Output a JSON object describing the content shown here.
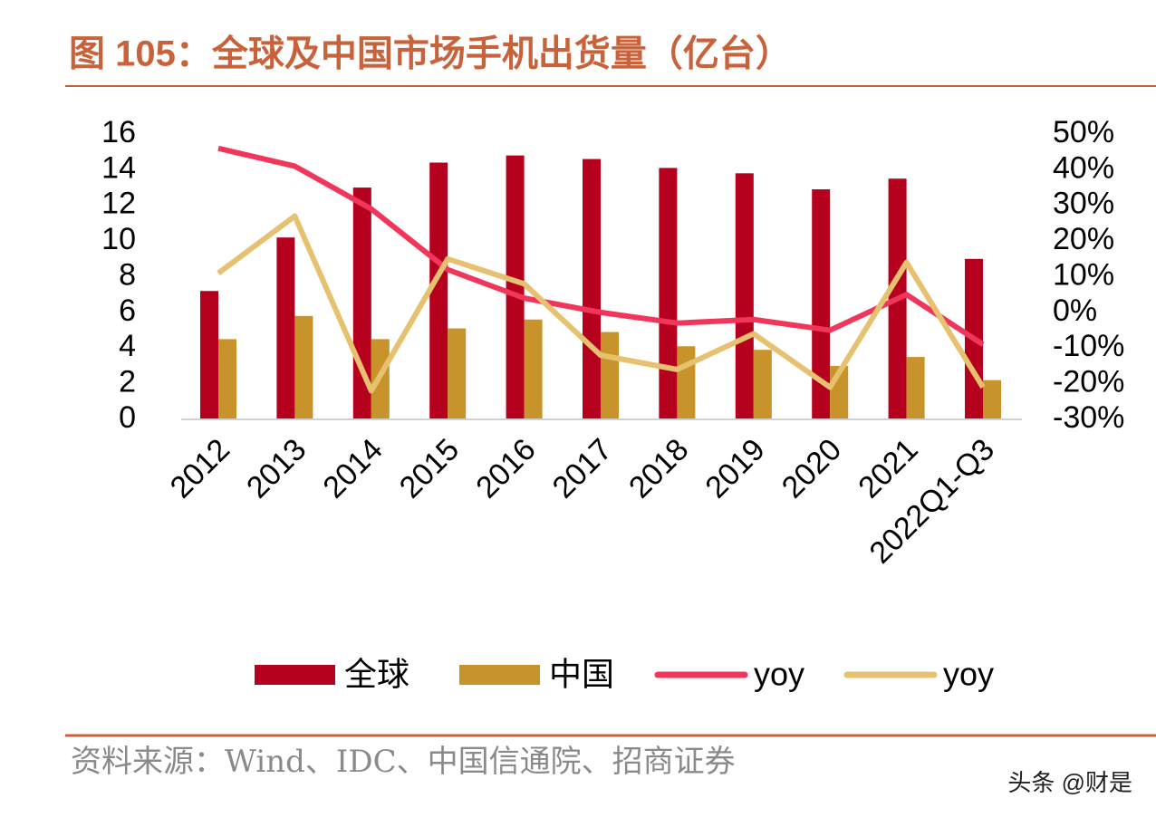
{
  "chart_data": {
    "type": "bar",
    "title": "图 105：全球及中国市场手机出货量（亿台）",
    "source": "资料来源：Wind、IDC、中国信通院、招商证券",
    "watermark": "头条 @财是",
    "categories": [
      "2012",
      "2013",
      "2014",
      "2015",
      "2016",
      "2017",
      "2018",
      "2019",
      "2020",
      "2021",
      "2022Q1-Q3"
    ],
    "series": [
      {
        "name": "全球",
        "type": "bar",
        "color": "#b5001e",
        "values": [
          7.2,
          10.2,
          13.0,
          14.4,
          14.8,
          14.6,
          14.1,
          13.8,
          12.9,
          13.5,
          9.0
        ]
      },
      {
        "name": "中国",
        "type": "bar",
        "color": "#c8932a",
        "values": [
          4.5,
          5.8,
          4.5,
          5.1,
          5.6,
          4.9,
          4.1,
          3.9,
          3.0,
          3.5,
          2.2
        ]
      },
      {
        "name": "yoy",
        "type": "line",
        "axis": "y2",
        "color": "#f0365a",
        "values": [
          46,
          41,
          29,
          12,
          4,
          0,
          -3,
          -2,
          -5,
          5,
          -9
        ]
      },
      {
        "name": "yoy",
        "type": "line",
        "axis": "y2",
        "color": "#e6c170",
        "values": [
          11,
          27,
          -22,
          15,
          8,
          -12,
          -16,
          -6,
          -21,
          14,
          -21
        ]
      }
    ],
    "ylim": [
      0,
      16
    ],
    "yticks": [
      0,
      2,
      4,
      6,
      8,
      10,
      12,
      14,
      16
    ],
    "y2lim": [
      -30,
      50
    ],
    "y2ticks": [
      {
        "value": -30,
        "label": "-30%"
      },
      {
        "value": -20,
        "label": "-20%"
      },
      {
        "value": -10,
        "label": "-10%"
      },
      {
        "value": 0,
        "label": "0%"
      },
      {
        "value": 10,
        "label": "10%"
      },
      {
        "value": 20,
        "label": "20%"
      },
      {
        "value": 30,
        "label": "30%"
      },
      {
        "value": 40,
        "label": "40%"
      },
      {
        "value": 50,
        "label": "50%"
      }
    ],
    "grid": false,
    "legend": "bottom"
  }
}
